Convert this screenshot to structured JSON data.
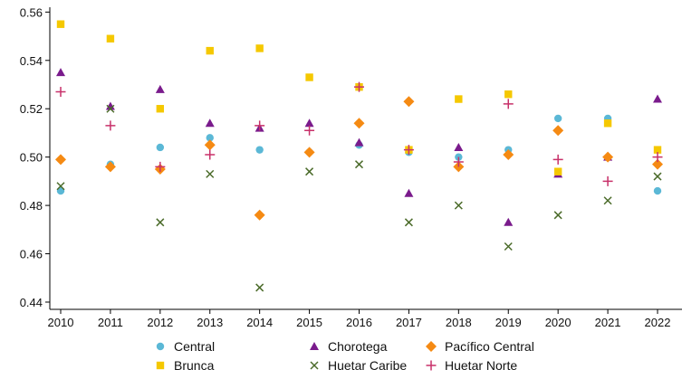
{
  "chart_data": {
    "type": "scatter",
    "title": "",
    "xlabel": "",
    "ylabel": "",
    "x": [
      2010,
      2011,
      2012,
      2013,
      2014,
      2015,
      2016,
      2017,
      2018,
      2019,
      2020,
      2021,
      2022
    ],
    "xlim": [
      2010,
      2022
    ],
    "ylim": [
      0.437,
      0.562
    ],
    "yticks": [
      "0.44",
      "0.46",
      "0.48",
      "0.50",
      "0.52",
      "0.54",
      "0.56"
    ],
    "xticks": [
      "2010",
      "2011",
      "2012",
      "2013",
      "2014",
      "2015",
      "2016",
      "2017",
      "2018",
      "2019",
      "2020",
      "2021",
      "2022"
    ],
    "grid": false,
    "legend_position": "bottom",
    "series": [
      {
        "name": "Central",
        "marker": "circle",
        "color": "#5bb8d6",
        "values": [
          0.486,
          0.497,
          0.504,
          0.508,
          0.503,
          0.502,
          0.505,
          0.502,
          0.5,
          0.503,
          0.516,
          0.516,
          0.486
        ]
      },
      {
        "name": "Chorotega",
        "marker": "triangle",
        "color": "#7a1b8c",
        "values": [
          0.535,
          0.521,
          0.528,
          0.514,
          0.512,
          0.514,
          0.506,
          0.485,
          0.504,
          0.473,
          0.493,
          0.5,
          0.524
        ]
      },
      {
        "name": "Pacífico Central",
        "marker": "diamond",
        "color": "#f58a13",
        "values": [
          0.499,
          0.496,
          0.495,
          0.505,
          0.476,
          0.502,
          0.514,
          0.523,
          0.496,
          0.501,
          0.511,
          0.5,
          0.497
        ]
      },
      {
        "name": "Brunca",
        "marker": "square",
        "color": "#f5c800",
        "values": [
          0.555,
          0.549,
          0.52,
          0.544,
          0.545,
          0.533,
          0.529,
          0.503,
          0.524,
          0.526,
          0.494,
          0.514,
          0.503
        ]
      },
      {
        "name": "Huetar Caribe",
        "marker": "x",
        "color": "#4b6b2a",
        "values": [
          0.488,
          0.52,
          0.473,
          0.493,
          0.446,
          0.494,
          0.497,
          0.473,
          0.48,
          0.463,
          0.476,
          0.482,
          0.492
        ]
      },
      {
        "name": "Huetar Norte",
        "marker": "plus",
        "color": "#c8316a",
        "values": [
          0.527,
          0.513,
          0.496,
          0.501,
          0.513,
          0.511,
          0.529,
          0.503,
          0.498,
          0.522,
          0.499,
          0.49,
          0.5
        ]
      }
    ]
  }
}
